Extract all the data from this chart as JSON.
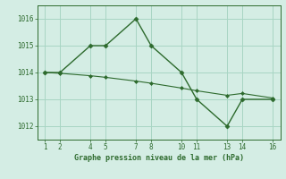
{
  "line1_x": [
    1,
    2,
    4,
    5,
    7,
    8,
    10,
    11,
    13,
    14,
    16
  ],
  "line1_y": [
    1014,
    1014,
    1015,
    1015,
    1016,
    1015,
    1014,
    1013,
    1012,
    1013,
    1013
  ],
  "line2_x": [
    1,
    2,
    4,
    5,
    7,
    8,
    10,
    11,
    13,
    14,
    16
  ],
  "line2_y": [
    1014.0,
    1013.97,
    1013.88,
    1013.82,
    1013.68,
    1013.6,
    1013.42,
    1013.32,
    1013.15,
    1013.22,
    1013.05
  ],
  "line_color": "#2d6a2d",
  "bg_color": "#d4ede4",
  "grid_color": "#a8d5c4",
  "xlabel": "Graphe pression niveau de la mer (hPa)",
  "xticks": [
    1,
    2,
    4,
    5,
    7,
    8,
    10,
    11,
    13,
    14,
    16
  ],
  "yticks": [
    1012,
    1013,
    1014,
    1015,
    1016
  ],
  "xlim": [
    0.5,
    16.5
  ],
  "ylim": [
    1011.5,
    1016.5
  ]
}
